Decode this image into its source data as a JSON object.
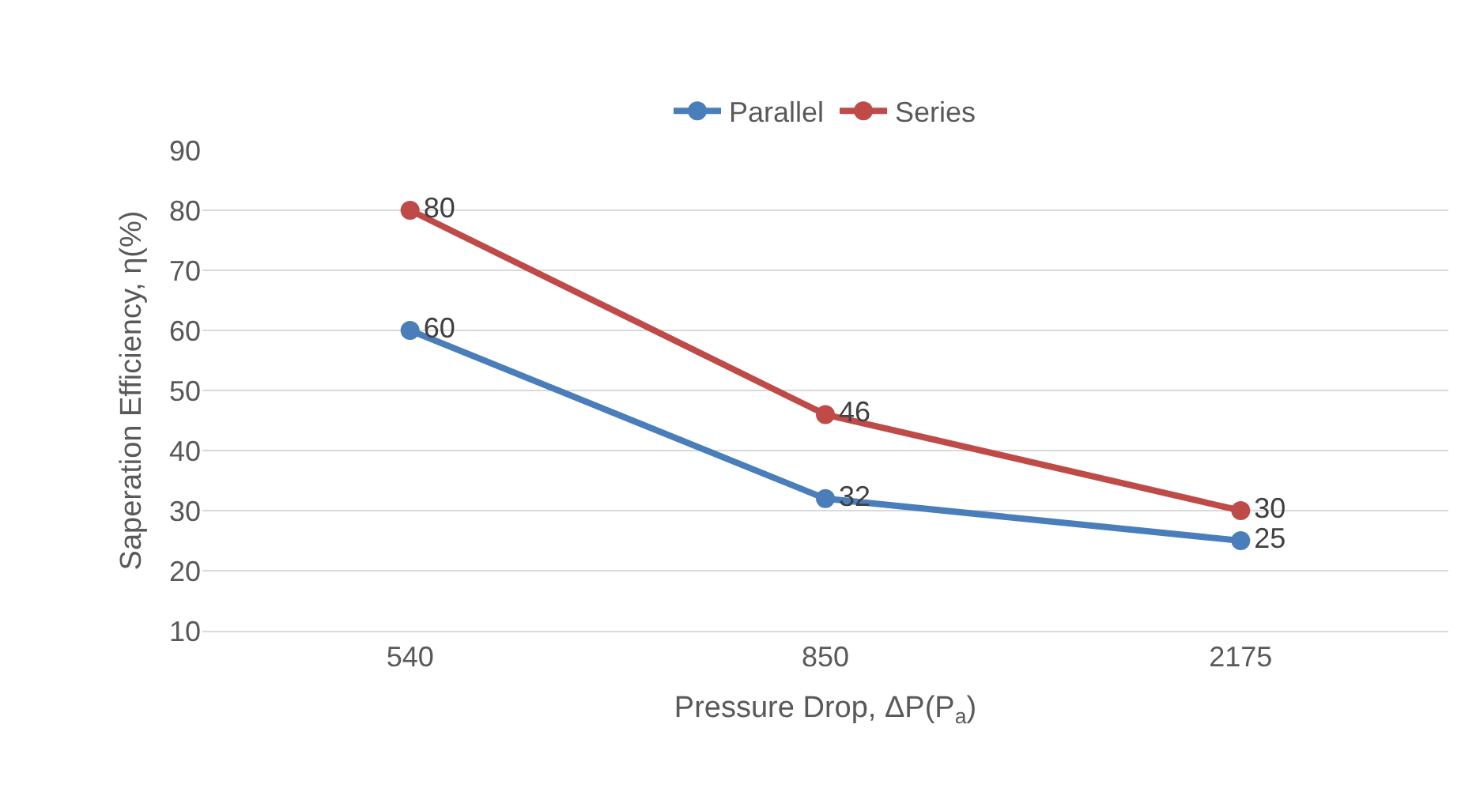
{
  "chart_data": {
    "type": "line",
    "xlabel": "Pressure Drop, ΔP(P$_{a}$)",
    "ylabel": "Saperation Efficiency, η(%)",
    "categories": [
      "540",
      "850",
      "2175"
    ],
    "series": [
      {
        "name": "Parallel",
        "color": "#4a7ebb",
        "values": [
          60,
          32,
          25
        ]
      },
      {
        "name": "Series",
        "color": "#be4b48",
        "values": [
          80,
          46,
          30
        ]
      }
    ],
    "ylim": [
      10,
      90
    ],
    "yticks": [
      10,
      20,
      30,
      40,
      50,
      60,
      70,
      80,
      90
    ],
    "grid": "y",
    "legend": "top",
    "data_labels": true,
    "marker": "circle",
    "line_style": "solid"
  }
}
